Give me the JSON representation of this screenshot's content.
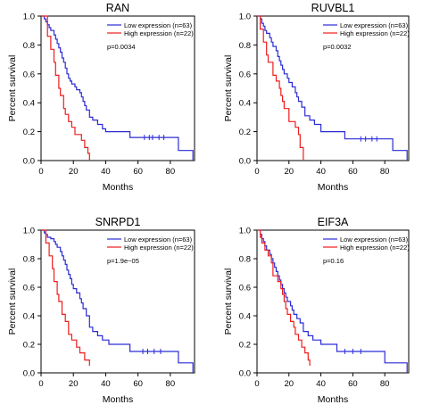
{
  "figure": {
    "colors": {
      "low": "#2b2bd6",
      "high": "#ef1c1c",
      "axis": "#000000"
    }
  },
  "chart_data": [
    {
      "type": "line",
      "title": "RAN",
      "xlabel": "Months",
      "ylabel": "Percent survival",
      "xlim": [
        0,
        95
      ],
      "ylim": [
        0,
        1
      ],
      "x_ticks": [
        "0",
        "20",
        "40",
        "60",
        "80"
      ],
      "y_ticks": [
        "0.0",
        "0.2",
        "0.4",
        "0.6",
        "0.8",
        "1.0"
      ],
      "legend": {
        "position": "top-right",
        "entries": [
          "Low expression (n=63)",
          "High expression (n=22)"
        ]
      },
      "annotation": "p=0.0034",
      "series": [
        {
          "name": "Low expression (n=63)",
          "color": "#2b2bd6",
          "points": [
            [
              0,
              1.0
            ],
            [
              2,
              0.98
            ],
            [
              3,
              0.96
            ],
            [
              4,
              0.94
            ],
            [
              5,
              0.92
            ],
            [
              6,
              0.9
            ],
            [
              8,
              0.87
            ],
            [
              9,
              0.84
            ],
            [
              10,
              0.81
            ],
            [
              11,
              0.78
            ],
            [
              12,
              0.75
            ],
            [
              13,
              0.71
            ],
            [
              14,
              0.68
            ],
            [
              15,
              0.64
            ],
            [
              16,
              0.6
            ],
            [
              17,
              0.57
            ],
            [
              18,
              0.55
            ],
            [
              19,
              0.53
            ],
            [
              21,
              0.51
            ],
            [
              22,
              0.49
            ],
            [
              24,
              0.47
            ],
            [
              25,
              0.44
            ],
            [
              26,
              0.41
            ],
            [
              27,
              0.38
            ],
            [
              28,
              0.35
            ],
            [
              30,
              0.3
            ],
            [
              32,
              0.28
            ],
            [
              35,
              0.25
            ],
            [
              38,
              0.22
            ],
            [
              40,
              0.2
            ],
            [
              55,
              0.16
            ],
            [
              85,
              0.07
            ],
            [
              94,
              0.0
            ]
          ],
          "censored": [
            [
              64,
              0.16
            ],
            [
              67,
              0.16
            ],
            [
              69,
              0.16
            ],
            [
              73,
              0.16
            ],
            [
              76,
              0.16
            ]
          ]
        },
        {
          "name": "High expression (n=22)",
          "color": "#ef1c1c",
          "points": [
            [
              0,
              1.0
            ],
            [
              4,
              0.86
            ],
            [
              6,
              0.77
            ],
            [
              8,
              0.68
            ],
            [
              9,
              0.59
            ],
            [
              11,
              0.5
            ],
            [
              12,
              0.45
            ],
            [
              14,
              0.36
            ],
            [
              15,
              0.32
            ],
            [
              17,
              0.27
            ],
            [
              19,
              0.23
            ],
            [
              21,
              0.18
            ],
            [
              25,
              0.14
            ],
            [
              27,
              0.09
            ],
            [
              29,
              0.05
            ],
            [
              30,
              0.0
            ]
          ],
          "censored": []
        }
      ]
    },
    {
      "type": "line",
      "title": "RUVBL1",
      "xlabel": "Months",
      "ylabel": "Percent survival",
      "xlim": [
        0,
        95
      ],
      "ylim": [
        0,
        1
      ],
      "x_ticks": [
        "0",
        "20",
        "40",
        "60",
        "80"
      ],
      "y_ticks": [
        "0.0",
        "0.2",
        "0.4",
        "0.6",
        "0.8",
        "1.0"
      ],
      "legend": {
        "position": "top-right",
        "entries": [
          "Low expression (n=63)",
          "High expression (n=22)"
        ]
      },
      "annotation": "p=0.0032",
      "series": [
        {
          "name": "Low expression (n=63)",
          "color": "#2b2bd6",
          "points": [
            [
              0,
              1.0
            ],
            [
              2,
              0.98
            ],
            [
              3,
              0.95
            ],
            [
              4,
              0.93
            ],
            [
              5,
              0.9
            ],
            [
              6,
              0.88
            ],
            [
              8,
              0.85
            ],
            [
              9,
              0.82
            ],
            [
              10,
              0.79
            ],
            [
              12,
              0.76
            ],
            [
              13,
              0.72
            ],
            [
              14,
              0.69
            ],
            [
              15,
              0.66
            ],
            [
              16,
              0.63
            ],
            [
              17,
              0.6
            ],
            [
              19,
              0.57
            ],
            [
              20,
              0.54
            ],
            [
              22,
              0.51
            ],
            [
              24,
              0.47
            ],
            [
              25,
              0.44
            ],
            [
              26,
              0.41
            ],
            [
              28,
              0.37
            ],
            [
              30,
              0.31
            ],
            [
              33,
              0.28
            ],
            [
              36,
              0.25
            ],
            [
              40,
              0.2
            ],
            [
              55,
              0.15
            ],
            [
              85,
              0.07
            ],
            [
              94,
              0.0
            ]
          ],
          "censored": [
            [
              65,
              0.15
            ],
            [
              68,
              0.15
            ],
            [
              72,
              0.15
            ],
            [
              75,
              0.15
            ]
          ]
        },
        {
          "name": "High expression (n=22)",
          "color": "#ef1c1c",
          "points": [
            [
              0,
              1.0
            ],
            [
              2,
              0.91
            ],
            [
              4,
              0.82
            ],
            [
              6,
              0.73
            ],
            [
              7,
              0.68
            ],
            [
              10,
              0.59
            ],
            [
              12,
              0.55
            ],
            [
              14,
              0.5
            ],
            [
              15,
              0.45
            ],
            [
              16,
              0.41
            ],
            [
              17,
              0.36
            ],
            [
              20,
              0.27
            ],
            [
              24,
              0.23
            ],
            [
              26,
              0.18
            ],
            [
              27,
              0.09
            ],
            [
              29,
              0.0
            ]
          ],
          "censored": []
        }
      ]
    },
    {
      "type": "line",
      "title": "SNRPD1",
      "xlabel": "Months",
      "ylabel": "Percent survival",
      "xlim": [
        0,
        95
      ],
      "ylim": [
        0,
        1
      ],
      "x_ticks": [
        "0",
        "20",
        "40",
        "60",
        "80"
      ],
      "y_ticks": [
        "0.0",
        "0.2",
        "0.4",
        "0.6",
        "0.8",
        "1.0"
      ],
      "legend": {
        "position": "top-right",
        "entries": [
          "Low expression (n=63)",
          "High expression (n=22)"
        ]
      },
      "annotation": "p=1.9e−05",
      "series": [
        {
          "name": "Low expression (n=63)",
          "color": "#2b2bd6",
          "points": [
            [
              0,
              1.0
            ],
            [
              2,
              0.98
            ],
            [
              3,
              0.97
            ],
            [
              4,
              0.95
            ],
            [
              6,
              0.94
            ],
            [
              8,
              0.92
            ],
            [
              9,
              0.9
            ],
            [
              10,
              0.88
            ],
            [
              12,
              0.85
            ],
            [
              13,
              0.82
            ],
            [
              14,
              0.79
            ],
            [
              15,
              0.76
            ],
            [
              16,
              0.72
            ],
            [
              17,
              0.69
            ],
            [
              18,
              0.66
            ],
            [
              19,
              0.62
            ],
            [
              20,
              0.59
            ],
            [
              22,
              0.56
            ],
            [
              24,
              0.52
            ],
            [
              25,
              0.49
            ],
            [
              26,
              0.45
            ],
            [
              28,
              0.4
            ],
            [
              30,
              0.32
            ],
            [
              32,
              0.29
            ],
            [
              35,
              0.26
            ],
            [
              38,
              0.23
            ],
            [
              42,
              0.2
            ],
            [
              55,
              0.15
            ],
            [
              85,
              0.07
            ],
            [
              94,
              0.0
            ]
          ],
          "censored": [
            [
              63,
              0.15
            ],
            [
              66,
              0.15
            ],
            [
              70,
              0.15
            ],
            [
              74,
              0.15
            ]
          ]
        },
        {
          "name": "High expression (n=22)",
          "color": "#ef1c1c",
          "points": [
            [
              0,
              1.0
            ],
            [
              3,
              0.91
            ],
            [
              5,
              0.82
            ],
            [
              7,
              0.73
            ],
            [
              8,
              0.64
            ],
            [
              10,
              0.55
            ],
            [
              11,
              0.5
            ],
            [
              13,
              0.41
            ],
            [
              15,
              0.36
            ],
            [
              17,
              0.27
            ],
            [
              19,
              0.23
            ],
            [
              22,
              0.18
            ],
            [
              24,
              0.14
            ],
            [
              27,
              0.09
            ],
            [
              30,
              0.05
            ]
          ],
          "censored": []
        }
      ]
    },
    {
      "type": "line",
      "title": "EIF3A",
      "xlabel": "Months",
      "ylabel": "Percent survival",
      "xlim": [
        0,
        95
      ],
      "ylim": [
        0,
        1
      ],
      "x_ticks": [
        "0",
        "20",
        "40",
        "60",
        "80"
      ],
      "y_ticks": [
        "0.0",
        "0.2",
        "0.4",
        "0.6",
        "0.8",
        "1.0"
      ],
      "legend": {
        "position": "top-right",
        "entries": [
          "Low expression (n=63)",
          "High expression (n=22)"
        ]
      },
      "annotation": "p=0.16",
      "series": [
        {
          "name": "Low expression (n=63)",
          "color": "#2b2bd6",
          "points": [
            [
              0,
              1.0
            ],
            [
              2,
              0.97
            ],
            [
              3,
              0.94
            ],
            [
              4,
              0.92
            ],
            [
              5,
              0.89
            ],
            [
              6,
              0.86
            ],
            [
              8,
              0.83
            ],
            [
              9,
              0.8
            ],
            [
              10,
              0.77
            ],
            [
              11,
              0.74
            ],
            [
              12,
              0.71
            ],
            [
              13,
              0.68
            ],
            [
              14,
              0.65
            ],
            [
              15,
              0.62
            ],
            [
              16,
              0.59
            ],
            [
              17,
              0.56
            ],
            [
              18,
              0.53
            ],
            [
              19,
              0.5
            ],
            [
              21,
              0.47
            ],
            [
              22,
              0.44
            ],
            [
              23,
              0.41
            ],
            [
              25,
              0.38
            ],
            [
              27,
              0.35
            ],
            [
              29,
              0.29
            ],
            [
              32,
              0.26
            ],
            [
              35,
              0.23
            ],
            [
              40,
              0.2
            ],
            [
              50,
              0.15
            ],
            [
              80,
              0.07
            ],
            [
              94,
              0.0
            ]
          ],
          "censored": [
            [
              55,
              0.15
            ],
            [
              60,
              0.15
            ],
            [
              65,
              0.15
            ]
          ]
        },
        {
          "name": "High expression (n=22)",
          "color": "#ef1c1c",
          "points": [
            [
              0,
              1.0
            ],
            [
              2,
              0.95
            ],
            [
              3,
              0.91
            ],
            [
              5,
              0.86
            ],
            [
              7,
              0.82
            ],
            [
              9,
              0.77
            ],
            [
              10,
              0.68
            ],
            [
              13,
              0.64
            ],
            [
              15,
              0.59
            ],
            [
              16,
              0.55
            ],
            [
              17,
              0.5
            ],
            [
              18,
              0.45
            ],
            [
              19,
              0.41
            ],
            [
              21,
              0.36
            ],
            [
              23,
              0.32
            ],
            [
              24,
              0.27
            ],
            [
              26,
              0.23
            ],
            [
              28,
              0.18
            ],
            [
              30,
              0.14
            ],
            [
              32,
              0.09
            ],
            [
              33,
              0.05
            ]
          ],
          "censored": []
        }
      ]
    }
  ]
}
